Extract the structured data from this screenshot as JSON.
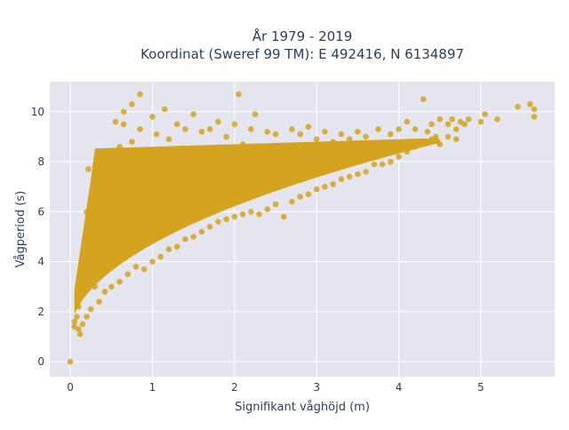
{
  "chart_data": {
    "type": "scatter",
    "title_line1": "År 1979 - 2019",
    "title_line2": "Koordinat (Sweref 99 TM): E 492416, N 6134897",
    "xlabel": "Signifikant våghöjd (m)",
    "ylabel": "Vågperiod (s)",
    "xlim": [
      -0.25,
      5.9
    ],
    "ylim": [
      -0.6,
      11.2
    ],
    "x_ticks": [
      0,
      1,
      2,
      3,
      4,
      5
    ],
    "y_ticks": [
      0,
      2,
      4,
      6,
      8,
      10
    ],
    "grid": true,
    "legend": "none",
    "colors": {
      "marker": "#d4a420",
      "plot_bg": "#e5e5ef",
      "grid": "#ffffff",
      "text": "#2a3f5f"
    },
    "points": [
      [
        0.0,
        0.0
      ],
      [
        0.05,
        1.4
      ],
      [
        0.05,
        1.6
      ],
      [
        0.08,
        1.8
      ],
      [
        0.1,
        2.2
      ],
      [
        0.1,
        1.3
      ],
      [
        0.12,
        2.6
      ],
      [
        0.12,
        1.1
      ],
      [
        0.15,
        3.2
      ],
      [
        0.15,
        1.5
      ],
      [
        0.18,
        3.8
      ],
      [
        0.2,
        4.6
      ],
      [
        0.2,
        1.8
      ],
      [
        0.2,
        6.0
      ],
      [
        0.22,
        7.7
      ],
      [
        0.25,
        5.2
      ],
      [
        0.25,
        2.1
      ],
      [
        0.28,
        6.8
      ],
      [
        0.3,
        3.0
      ],
      [
        0.3,
        7.2
      ],
      [
        0.3,
        7.8
      ],
      [
        0.35,
        6.5
      ],
      [
        0.35,
        2.4
      ],
      [
        0.4,
        5.0
      ],
      [
        0.4,
        8.2
      ],
      [
        0.42,
        2.8
      ],
      [
        0.45,
        6.8
      ],
      [
        0.5,
        7.5
      ],
      [
        0.5,
        3.0
      ],
      [
        0.55,
        9.6
      ],
      [
        0.6,
        8.6
      ],
      [
        0.6,
        3.2
      ],
      [
        0.65,
        10.0
      ],
      [
        0.65,
        9.5
      ],
      [
        0.7,
        6.0
      ],
      [
        0.7,
        3.5
      ],
      [
        0.75,
        8.8
      ],
      [
        0.75,
        10.3
      ],
      [
        0.8,
        7.2
      ],
      [
        0.8,
        3.8
      ],
      [
        0.85,
        10.7
      ],
      [
        0.85,
        9.3
      ],
      [
        0.9,
        5.5
      ],
      [
        0.9,
        3.7
      ],
      [
        0.95,
        8.3
      ],
      [
        1.0,
        9.8
      ],
      [
        1.0,
        4.0
      ],
      [
        1.0,
        6.2
      ],
      [
        1.05,
        9.1
      ],
      [
        1.1,
        7.6
      ],
      [
        1.1,
        4.2
      ],
      [
        1.15,
        10.1
      ],
      [
        1.2,
        8.9
      ],
      [
        1.2,
        4.5
      ],
      [
        1.25,
        6.6
      ],
      [
        1.3,
        9.5
      ],
      [
        1.3,
        4.6
      ],
      [
        1.35,
        7.9
      ],
      [
        1.4,
        9.3
      ],
      [
        1.4,
        4.9
      ],
      [
        1.45,
        8.2
      ],
      [
        1.5,
        9.9
      ],
      [
        1.5,
        5.0
      ],
      [
        1.55,
        7.1
      ],
      [
        1.6,
        9.2
      ],
      [
        1.6,
        5.2
      ],
      [
        1.7,
        9.3
      ],
      [
        1.7,
        5.4
      ],
      [
        1.75,
        8.0
      ],
      [
        1.8,
        9.6
      ],
      [
        1.8,
        5.6
      ],
      [
        1.85,
        7.5
      ],
      [
        1.9,
        9.0
      ],
      [
        1.9,
        5.7
      ],
      [
        1.95,
        7.8
      ],
      [
        2.0,
        9.5
      ],
      [
        2.0,
        5.8
      ],
      [
        2.05,
        10.7
      ],
      [
        2.1,
        8.7
      ],
      [
        2.1,
        5.9
      ],
      [
        2.15,
        7.5
      ],
      [
        2.2,
        9.3
      ],
      [
        2.2,
        6.0
      ],
      [
        2.25,
        9.9
      ],
      [
        2.3,
        8.6
      ],
      [
        2.3,
        5.9
      ],
      [
        2.35,
        7.3
      ],
      [
        2.4,
        9.2
      ],
      [
        2.4,
        6.1
      ],
      [
        2.45,
        8.1
      ],
      [
        2.5,
        9.1
      ],
      [
        2.5,
        6.3
      ],
      [
        2.6,
        8.4
      ],
      [
        2.6,
        5.8
      ],
      [
        2.7,
        9.3
      ],
      [
        2.7,
        6.4
      ],
      [
        2.75,
        8.0
      ],
      [
        2.8,
        9.1
      ],
      [
        2.8,
        6.6
      ],
      [
        2.85,
        7.6
      ],
      [
        2.9,
        9.4
      ],
      [
        2.9,
        6.7
      ],
      [
        3.0,
        8.9
      ],
      [
        3.0,
        6.9
      ],
      [
        3.05,
        7.8
      ],
      [
        3.1,
        9.2
      ],
      [
        3.1,
        7.0
      ],
      [
        3.2,
        8.8
      ],
      [
        3.2,
        7.1
      ],
      [
        3.25,
        8.0
      ],
      [
        3.3,
        9.1
      ],
      [
        3.3,
        7.3
      ],
      [
        3.4,
        8.9
      ],
      [
        3.4,
        7.4
      ],
      [
        3.5,
        9.2
      ],
      [
        3.5,
        7.5
      ],
      [
        3.55,
        8.2
      ],
      [
        3.6,
        9.0
      ],
      [
        3.6,
        7.6
      ],
      [
        3.7,
        8.6
      ],
      [
        3.7,
        7.9
      ],
      [
        3.75,
        9.3
      ],
      [
        3.8,
        8.4
      ],
      [
        3.8,
        7.9
      ],
      [
        3.9,
        9.1
      ],
      [
        3.9,
        8.0
      ],
      [
        4.0,
        9.3
      ],
      [
        4.0,
        8.2
      ],
      [
        4.05,
        8.6
      ],
      [
        4.1,
        9.6
      ],
      [
        4.1,
        8.4
      ],
      [
        4.2,
        9.3
      ],
      [
        4.2,
        8.6
      ],
      [
        4.3,
        10.5
      ],
      [
        4.3,
        8.8
      ],
      [
        4.35,
        9.2
      ],
      [
        4.4,
        9.5
      ],
      [
        4.4,
        8.9
      ],
      [
        4.45,
        9.0
      ],
      [
        4.5,
        9.7
      ],
      [
        4.5,
        8.7
      ],
      [
        4.6,
        9.5
      ],
      [
        4.6,
        9.0
      ],
      [
        4.65,
        9.7
      ],
      [
        4.7,
        9.3
      ],
      [
        4.7,
        8.9
      ],
      [
        4.75,
        9.6
      ],
      [
        4.8,
        9.5
      ],
      [
        4.85,
        9.7
      ],
      [
        5.0,
        9.6
      ],
      [
        5.05,
        9.9
      ],
      [
        5.2,
        9.7
      ],
      [
        5.45,
        10.2
      ],
      [
        5.6,
        10.3
      ],
      [
        5.65,
        9.8
      ],
      [
        5.65,
        10.1
      ]
    ]
  }
}
